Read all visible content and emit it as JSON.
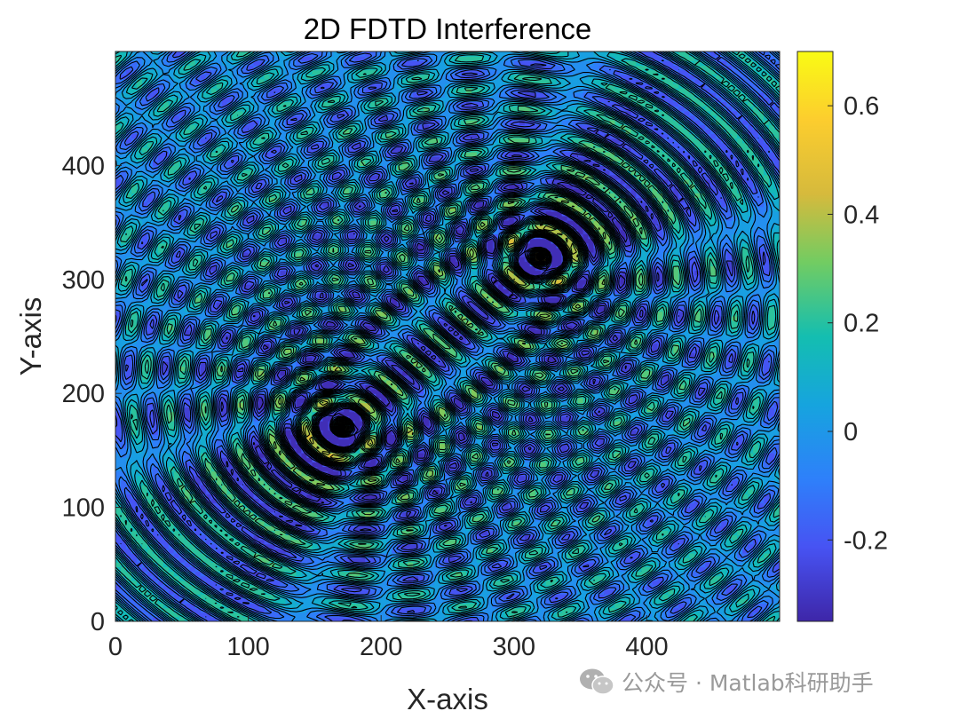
{
  "chart_data": {
    "type": "heatmap",
    "style": "filled-contour",
    "title": "2D FDTD Interference",
    "xlabel": "X-axis",
    "ylabel": "Y-axis",
    "xlim": [
      0,
      500
    ],
    "ylim": [
      0,
      500
    ],
    "xticks": [
      0,
      100,
      200,
      300,
      400
    ],
    "yticks": [
      0,
      100,
      200,
      300,
      400
    ],
    "grid": false,
    "colormap": "parula",
    "colorbar": {
      "position": "right",
      "clim": [
        -0.35,
        0.7
      ],
      "ticks": [
        {
          "value": -0.2,
          "label": "-0.2"
        },
        {
          "value": 0,
          "label": "0"
        },
        {
          "value": 0.2,
          "label": "0.2"
        },
        {
          "value": 0.4,
          "label": "0.4"
        },
        {
          "value": 0.6,
          "label": "0.6"
        }
      ]
    },
    "sources": [
      {
        "x": 170,
        "y": 170
      },
      {
        "x": 320,
        "y": 320
      }
    ],
    "wavelength": 26,
    "contour_lines_color": "#000000"
  },
  "watermark": {
    "text": "公众号 · Matlab科研助手",
    "icon": "wechat-icon"
  }
}
